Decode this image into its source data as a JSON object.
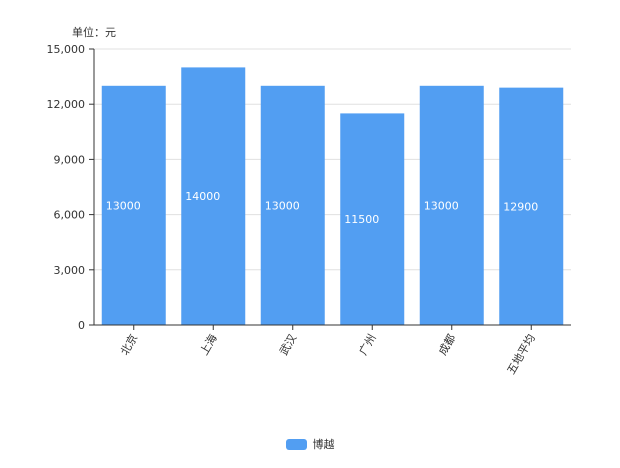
{
  "chart_data": {
    "type": "bar",
    "unit_label": "单位：元",
    "categories": [
      "北京",
      "上海",
      "武汉",
      "广州",
      "成都",
      "五地平均"
    ],
    "series": [
      {
        "name": "博越",
        "values": [
          13000,
          14000,
          13000,
          11500,
          13000,
          12900
        ],
        "color": "#529ef2"
      }
    ],
    "ylim": [
      0,
      15000
    ],
    "yticks": [
      0,
      3000,
      6000,
      9000,
      12000,
      15000
    ],
    "ytick_labels": [
      "0",
      "3,000",
      "6,000",
      "9,000",
      "12,000",
      "15,000"
    ],
    "grid": true,
    "legend_position": "bottom-center",
    "colors": {
      "bar": "#529ef2",
      "grid": "#e0e0e0",
      "axis": "#333333",
      "label_text": "#333333",
      "value_text": "#ffffff"
    }
  }
}
